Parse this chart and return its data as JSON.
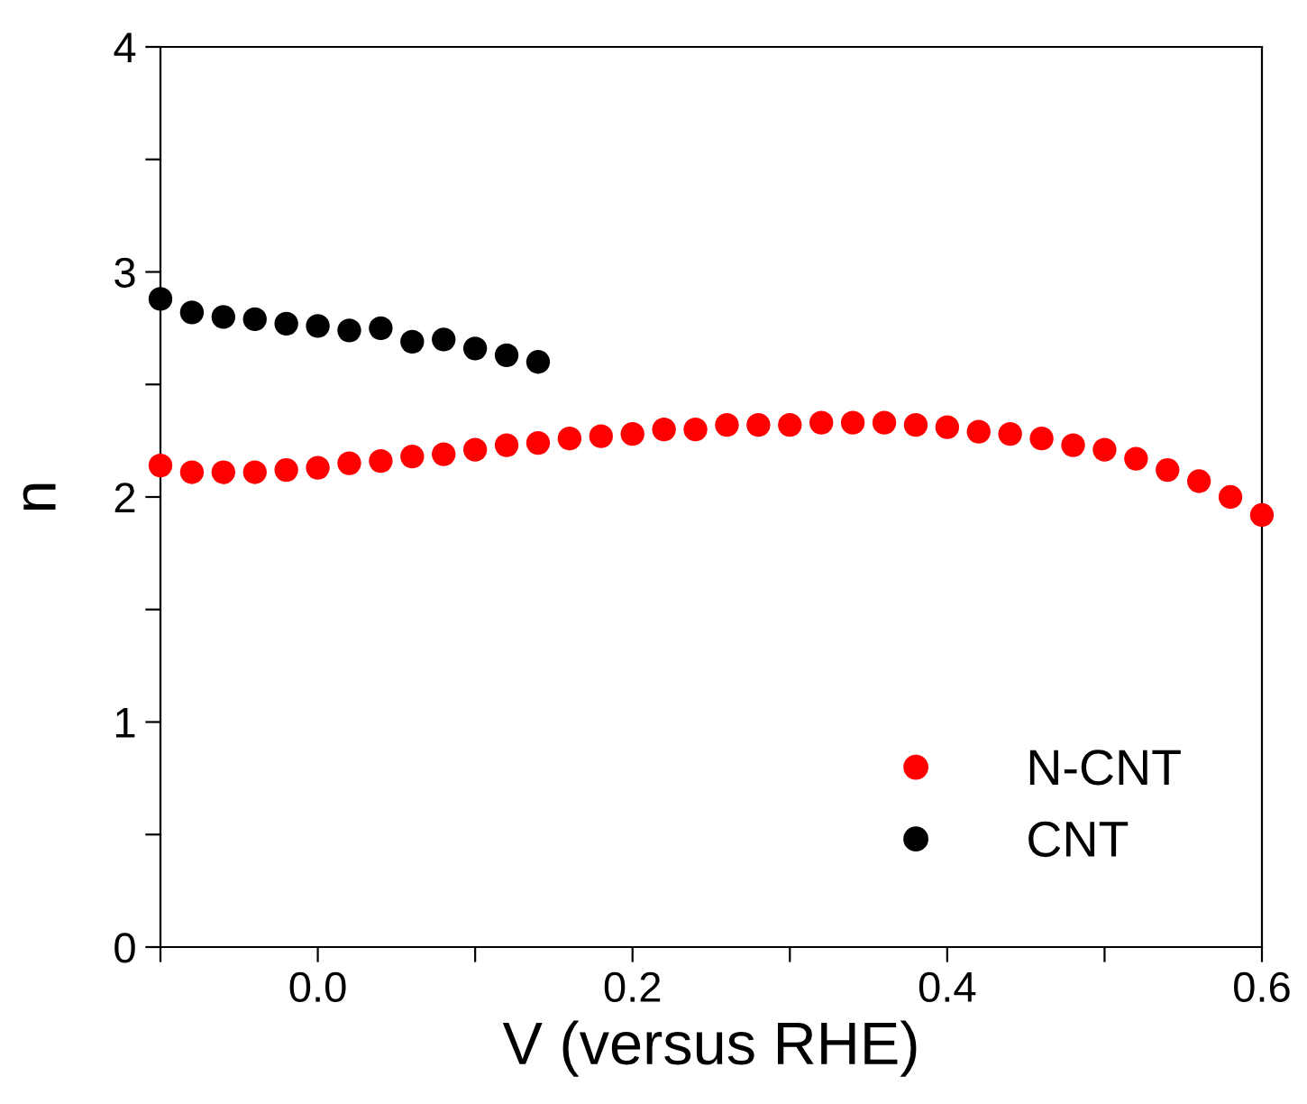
{
  "chart_data": {
    "type": "scatter",
    "xlabel": "V (versus RHE)",
    "ylabel": "n",
    "xlim": [
      -0.1,
      0.6
    ],
    "ylim": [
      0,
      4
    ],
    "xticks": [
      {
        "value": -0.1,
        "label": null
      },
      {
        "value": 0.0,
        "label": "0.0"
      },
      {
        "value": 0.1,
        "label": null
      },
      {
        "value": 0.2,
        "label": "0.2"
      },
      {
        "value": 0.3,
        "label": null
      },
      {
        "value": 0.4,
        "label": "0.4"
      },
      {
        "value": 0.5,
        "label": null
      },
      {
        "value": 0.6,
        "label": "0.6"
      }
    ],
    "yticks": [
      0,
      {
        "value": 0.5,
        "label": null
      },
      1,
      {
        "value": 1.5,
        "label": null
      },
      2,
      {
        "value": 2.5,
        "label": null
      },
      3,
      {
        "value": 3.5,
        "label": null
      },
      4
    ],
    "marker": "circle",
    "legend": "bottom right",
    "grid": false,
    "series": [
      {
        "name": "N-CNT",
        "color": "#ff0000",
        "x": [
          -0.1,
          -0.08,
          -0.06,
          -0.04,
          -0.02,
          0.0,
          0.02,
          0.04,
          0.06,
          0.08,
          0.1,
          0.12,
          0.14,
          0.16,
          0.18,
          0.2,
          0.22,
          0.24,
          0.26,
          0.28,
          0.3,
          0.32,
          0.34,
          0.36,
          0.38,
          0.4,
          0.42,
          0.44,
          0.46,
          0.48,
          0.5,
          0.52,
          0.54,
          0.56,
          0.58,
          0.6
        ],
        "values": [
          2.14,
          2.11,
          2.11,
          2.11,
          2.12,
          2.13,
          2.15,
          2.16,
          2.18,
          2.19,
          2.21,
          2.23,
          2.24,
          2.26,
          2.27,
          2.28,
          2.3,
          2.3,
          2.32,
          2.32,
          2.32,
          2.33,
          2.33,
          2.33,
          2.32,
          2.31,
          2.29,
          2.28,
          2.26,
          2.23,
          2.21,
          2.17,
          2.12,
          2.07,
          2.0,
          1.92
        ]
      },
      {
        "name": "CNT",
        "color": "#000000",
        "x": [
          -0.1,
          -0.08,
          -0.06,
          -0.04,
          -0.02,
          0.0,
          0.02,
          0.04,
          0.06,
          0.08,
          0.1,
          0.12,
          0.14
        ],
        "values": [
          2.88,
          2.82,
          2.8,
          2.79,
          2.77,
          2.76,
          2.74,
          2.75,
          2.69,
          2.7,
          2.66,
          2.63,
          2.6
        ]
      }
    ]
  }
}
